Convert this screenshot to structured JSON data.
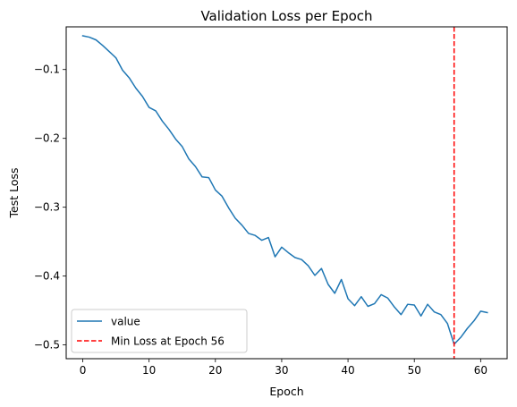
{
  "chart_data": {
    "type": "line",
    "title": "Validation Loss per Epoch",
    "xlabel": "Epoch",
    "ylabel": "Test Loss",
    "xlim": [
      -2.5,
      64.0
    ],
    "ylim": [
      -0.52,
      -0.038
    ],
    "x_ticks": [
      0,
      10,
      20,
      30,
      40,
      50,
      60
    ],
    "x_tick_labels": [
      "0",
      "10",
      "20",
      "30",
      "40",
      "50",
      "60"
    ],
    "y_ticks": [
      -0.1,
      -0.2,
      -0.3,
      -0.4,
      -0.5
    ],
    "y_tick_labels": [
      "−0.1",
      "−0.2",
      "−0.3",
      "−0.4",
      "−0.5"
    ],
    "grid": false,
    "legend_position": "lower-left",
    "series": [
      {
        "name": "value",
        "color": "#1f77b4",
        "x": [
          0,
          1,
          2,
          3,
          4,
          5,
          6,
          7,
          8,
          9,
          10,
          11,
          12,
          13,
          14,
          15,
          16,
          17,
          18,
          19,
          20,
          21,
          22,
          23,
          24,
          25,
          26,
          27,
          28,
          29,
          30,
          31,
          32,
          33,
          34,
          35,
          36,
          37,
          38,
          39,
          40,
          41,
          42,
          43,
          44,
          45,
          46,
          47,
          48,
          49,
          50,
          51,
          52,
          53,
          54,
          55,
          56,
          57,
          58,
          59,
          60,
          61
        ],
        "y": [
          -0.051,
          -0.053,
          -0.057,
          -0.065,
          -0.074,
          -0.083,
          -0.101,
          -0.112,
          -0.127,
          -0.139,
          -0.155,
          -0.16,
          -0.175,
          -0.187,
          -0.201,
          -0.212,
          -0.23,
          -0.241,
          -0.256,
          -0.257,
          -0.275,
          -0.284,
          -0.301,
          -0.316,
          -0.326,
          -0.338,
          -0.341,
          -0.348,
          -0.344,
          -0.372,
          -0.358,
          -0.366,
          -0.373,
          -0.376,
          -0.385,
          -0.399,
          -0.389,
          -0.412,
          -0.425,
          -0.405,
          -0.433,
          -0.443,
          -0.43,
          -0.444,
          -0.44,
          -0.427,
          -0.432,
          -0.445,
          -0.456,
          -0.441,
          -0.442,
          -0.458,
          -0.441,
          -0.452,
          -0.456,
          -0.469,
          -0.499,
          -0.489,
          -0.476,
          -0.465,
          -0.451,
          -0.453
        ]
      }
    ],
    "reference_line": {
      "name": "Min Loss at Epoch 56",
      "orientation": "vertical",
      "x": 56,
      "color": "#ff0000",
      "style": "dashed"
    },
    "legend": [
      {
        "label": "value",
        "color": "#1f77b4",
        "style": "solid"
      },
      {
        "label": "Min Loss at Epoch 56",
        "color": "#ff0000",
        "style": "dashed"
      }
    ]
  }
}
